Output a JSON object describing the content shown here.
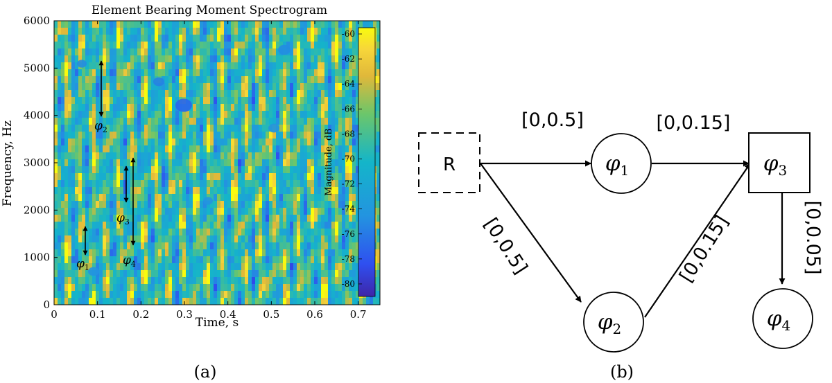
{
  "panel_a": {
    "title": "Element Bearing Moment Spectrogram",
    "xlabel": "Time, s",
    "ylabel": "Frequency, Hz",
    "colorbar_label": "Magnitude, dB",
    "caption": "(a)",
    "colors": {
      "low": "#3e26a8",
      "mid": "#2cb5c0",
      "high": "#f9fb0e"
    },
    "annotations": [
      {
        "label": "φ",
        "sub": "1"
      },
      {
        "label": "φ",
        "sub": "2"
      },
      {
        "label": "φ",
        "sub": "3"
      },
      {
        "label": "φ",
        "sub": "4"
      }
    ]
  },
  "chart_data": {
    "type": "heatmap",
    "title": "Element Bearing Moment Spectrogram",
    "xlabel": "Time, s",
    "ylabel": "Frequency, Hz",
    "xlim": [
      0,
      0.75
    ],
    "ylim": [
      0,
      6000
    ],
    "x_ticks": [
      "0",
      "0.1",
      "0.2",
      "0.3",
      "0.4",
      "0.5",
      "0.6",
      "0.7"
    ],
    "y_ticks": [
      "0",
      "1000",
      "2000",
      "3000",
      "4000",
      "5000",
      "6000"
    ],
    "colorbar": {
      "label": "Magnitude, dB",
      "range": [
        -81,
        -59.5
      ],
      "ticks": [
        "-60",
        "-62",
        "-64",
        "-66",
        "-68",
        "-70",
        "-72",
        "-74",
        "-76",
        "-78",
        "-80"
      ]
    },
    "colormap": "parula",
    "annotations": [
      {
        "label": "φ1",
        "time": 0.07,
        "freq_range": [
          900,
          1650
        ]
      },
      {
        "label": "φ2",
        "time": 0.1,
        "freq_range": [
          4250,
          5200
        ]
      },
      {
        "label": "φ3",
        "time": 0.16,
        "freq_range": [
          2200,
          2900
        ]
      },
      {
        "label": "φ4",
        "time": 0.175,
        "freq_range": [
          1250,
          3050
        ]
      }
    ]
  },
  "panel_b": {
    "caption": "(b)",
    "nodes": [
      {
        "id": "R",
        "label": "R",
        "sub": "",
        "shape": "dashed-square"
      },
      {
        "id": "phi1",
        "label": "φ",
        "sub": "1",
        "shape": "circle"
      },
      {
        "id": "phi2",
        "label": "φ",
        "sub": "2",
        "shape": "circle"
      },
      {
        "id": "phi3",
        "label": "φ",
        "sub": "3",
        "shape": "square"
      },
      {
        "id": "phi4",
        "label": "φ",
        "sub": "4",
        "shape": "circle"
      }
    ],
    "edges": [
      {
        "from": "R",
        "to": "phi1",
        "label": "[0,0.5]"
      },
      {
        "from": "phi1",
        "to": "phi3",
        "label": "[0,0.15]"
      },
      {
        "from": "R",
        "to": "phi2",
        "label": "[0,0.5]"
      },
      {
        "from": "phi2",
        "to": "phi3",
        "label": "[0,0.15]"
      },
      {
        "from": "phi3",
        "to": "phi4",
        "label": "[0,0.05]"
      }
    ]
  }
}
